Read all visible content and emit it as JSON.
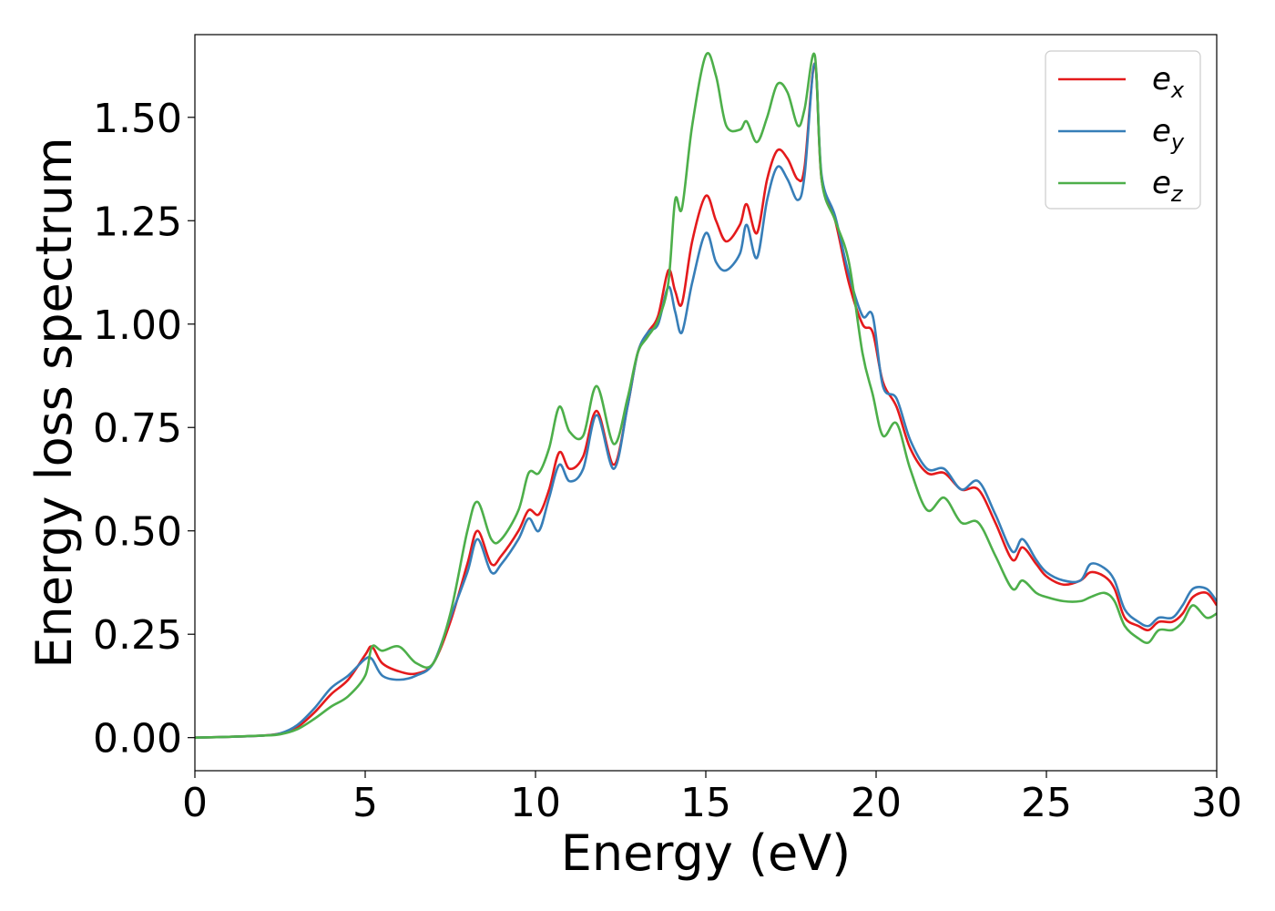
{
  "chart_data": {
    "type": "line",
    "xlabel": "Energy (eV)",
    "ylabel": "Energy loss spectrum",
    "xlim": [
      0,
      30
    ],
    "ylim": [
      -0.08,
      1.7
    ],
    "xticks": [
      0,
      5,
      10,
      15,
      20,
      25,
      30
    ],
    "xtick_labels": [
      "0",
      "5",
      "10",
      "15",
      "20",
      "25",
      "30"
    ],
    "yticks": [
      0.0,
      0.25,
      0.5,
      0.75,
      1.0,
      1.25,
      1.5
    ],
    "ytick_labels": [
      "0.00",
      "0.25",
      "0.50",
      "0.75",
      "1.00",
      "1.25",
      "1.50"
    ],
    "grid": false,
    "legend_position": "top-right",
    "series": [
      {
        "name": "e_x",
        "legend_main": "e",
        "legend_sub": "x",
        "color": "#e41a1c",
        "x": [
          0,
          1,
          2,
          2.5,
          3,
          3.5,
          4,
          4.5,
          5,
          5.2,
          5.5,
          6,
          6.5,
          7,
          7.5,
          8,
          8.3,
          8.7,
          9,
          9.5,
          9.8,
          10.1,
          10.4,
          10.7,
          11,
          11.4,
          11.8,
          12.3,
          12.7,
          13,
          13.3,
          13.6,
          13.9,
          14.1,
          14.3,
          14.6,
          15,
          15.3,
          15.6,
          16,
          16.2,
          16.5,
          16.8,
          17.1,
          17.4,
          17.7,
          17.9,
          18.2,
          18.4,
          18.8,
          19.2,
          19.6,
          19.9,
          20.2,
          20.6,
          21,
          21.5,
          22,
          22.5,
          23,
          23.5,
          24,
          24.3,
          24.7,
          25,
          25.5,
          26,
          26.3,
          26.7,
          27,
          27.3,
          27.7,
          28,
          28.3,
          28.7,
          29,
          29.3,
          29.7,
          30
        ],
        "y": [
          0.0,
          0.002,
          0.005,
          0.01,
          0.025,
          0.06,
          0.105,
          0.14,
          0.2,
          0.22,
          0.18,
          0.16,
          0.155,
          0.18,
          0.28,
          0.42,
          0.5,
          0.42,
          0.44,
          0.5,
          0.55,
          0.54,
          0.6,
          0.69,
          0.65,
          0.68,
          0.79,
          0.66,
          0.8,
          0.93,
          0.98,
          1.02,
          1.13,
          1.08,
          1.05,
          1.2,
          1.31,
          1.25,
          1.2,
          1.24,
          1.29,
          1.22,
          1.35,
          1.42,
          1.4,
          1.35,
          1.38,
          1.63,
          1.35,
          1.25,
          1.1,
          1.0,
          0.98,
          0.86,
          0.8,
          0.7,
          0.64,
          0.64,
          0.6,
          0.6,
          0.52,
          0.43,
          0.46,
          0.42,
          0.39,
          0.37,
          0.38,
          0.4,
          0.39,
          0.36,
          0.29,
          0.27,
          0.26,
          0.28,
          0.28,
          0.3,
          0.34,
          0.35,
          0.32
        ]
      },
      {
        "name": "e_y",
        "legend_main": "e",
        "legend_sub": "y",
        "color": "#377eb8",
        "x": [
          0,
          1,
          2,
          2.5,
          3,
          3.5,
          4,
          4.5,
          5,
          5.2,
          5.5,
          6,
          6.5,
          7,
          7.5,
          8,
          8.3,
          8.7,
          9,
          9.5,
          9.8,
          10.1,
          10.4,
          10.7,
          11,
          11.4,
          11.8,
          12.3,
          12.7,
          13,
          13.3,
          13.6,
          13.9,
          14.1,
          14.3,
          14.6,
          15,
          15.3,
          15.6,
          16,
          16.2,
          16.5,
          16.8,
          17.1,
          17.4,
          17.7,
          17.9,
          18.2,
          18.4,
          18.8,
          19.2,
          19.6,
          19.9,
          20.2,
          20.6,
          21,
          21.5,
          22,
          22.5,
          23,
          23.5,
          24,
          24.3,
          24.7,
          25,
          25.5,
          26,
          26.3,
          26.7,
          27,
          27.3,
          27.7,
          28,
          28.3,
          28.7,
          29,
          29.3,
          29.7,
          30
        ],
        "y": [
          0.0,
          0.002,
          0.005,
          0.01,
          0.03,
          0.07,
          0.12,
          0.15,
          0.19,
          0.19,
          0.15,
          0.14,
          0.15,
          0.18,
          0.29,
          0.4,
          0.48,
          0.4,
          0.42,
          0.48,
          0.53,
          0.5,
          0.58,
          0.66,
          0.62,
          0.65,
          0.78,
          0.65,
          0.8,
          0.93,
          0.98,
          1.0,
          1.09,
          1.03,
          0.98,
          1.1,
          1.22,
          1.15,
          1.13,
          1.17,
          1.24,
          1.16,
          1.3,
          1.38,
          1.35,
          1.3,
          1.36,
          1.63,
          1.36,
          1.26,
          1.12,
          1.02,
          1.02,
          0.85,
          0.82,
          0.72,
          0.65,
          0.65,
          0.6,
          0.62,
          0.54,
          0.45,
          0.48,
          0.43,
          0.4,
          0.38,
          0.38,
          0.42,
          0.41,
          0.38,
          0.31,
          0.28,
          0.27,
          0.29,
          0.29,
          0.32,
          0.36,
          0.36,
          0.33
        ]
      },
      {
        "name": "e_z",
        "legend_main": "e",
        "legend_sub": "z",
        "color": "#4daf4a",
        "x": [
          0,
          1,
          2,
          2.5,
          3,
          3.5,
          4,
          4.5,
          5,
          5.2,
          5.5,
          6,
          6.5,
          7,
          7.5,
          8,
          8.3,
          8.7,
          9,
          9.5,
          9.8,
          10.1,
          10.4,
          10.7,
          11,
          11.4,
          11.8,
          12.3,
          12.7,
          13,
          13.3,
          13.6,
          13.9,
          14.1,
          14.3,
          14.6,
          15,
          15.3,
          15.6,
          16,
          16.2,
          16.5,
          16.8,
          17.1,
          17.4,
          17.7,
          17.9,
          18.2,
          18.4,
          18.8,
          19.2,
          19.6,
          19.9,
          20.2,
          20.6,
          21,
          21.5,
          22,
          22.5,
          23,
          23.5,
          24,
          24.3,
          24.7,
          25,
          25.5,
          26,
          26.3,
          26.7,
          27,
          27.3,
          27.7,
          28,
          28.3,
          28.7,
          29,
          29.3,
          29.7,
          30
        ],
        "y": [
          0.0,
          0.002,
          0.005,
          0.008,
          0.02,
          0.045,
          0.075,
          0.1,
          0.15,
          0.22,
          0.21,
          0.22,
          0.18,
          0.18,
          0.3,
          0.5,
          0.57,
          0.48,
          0.48,
          0.55,
          0.64,
          0.64,
          0.7,
          0.8,
          0.74,
          0.73,
          0.85,
          0.71,
          0.82,
          0.93,
          0.97,
          1.01,
          1.1,
          1.3,
          1.28,
          1.48,
          1.65,
          1.6,
          1.48,
          1.47,
          1.49,
          1.44,
          1.5,
          1.58,
          1.56,
          1.48,
          1.52,
          1.65,
          1.35,
          1.25,
          1.15,
          0.93,
          0.83,
          0.73,
          0.76,
          0.65,
          0.55,
          0.58,
          0.52,
          0.52,
          0.44,
          0.36,
          0.38,
          0.35,
          0.34,
          0.33,
          0.33,
          0.34,
          0.35,
          0.33,
          0.27,
          0.24,
          0.23,
          0.26,
          0.26,
          0.28,
          0.32,
          0.29,
          0.3
        ]
      }
    ]
  }
}
